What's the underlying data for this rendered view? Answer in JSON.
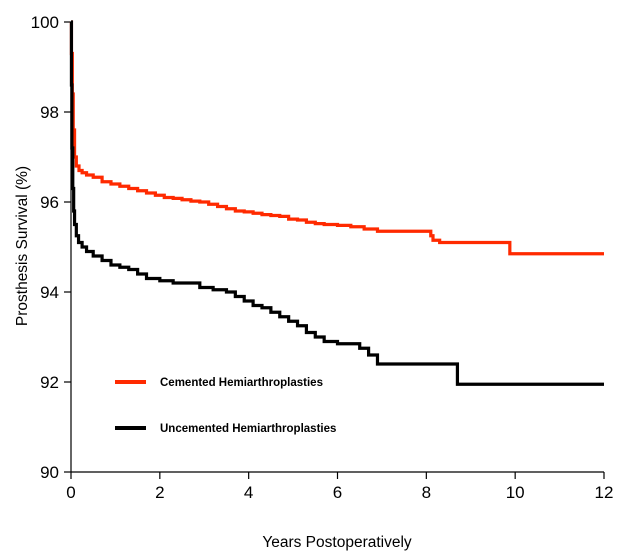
{
  "chart_data": {
    "type": "line",
    "title": "",
    "xlabel": "Years Postoperatively",
    "ylabel": "Prosthesis Survival (%)",
    "xlim": [
      0,
      12
    ],
    "ylim": [
      90,
      100
    ],
    "x_ticks": [
      "0",
      "2",
      "4",
      "6",
      "8",
      "10",
      "12"
    ],
    "y_ticks": [
      "90",
      "92",
      "94",
      "96",
      "98",
      "100"
    ],
    "grid": false,
    "legend_position": "bottom-left",
    "step": true,
    "series": [
      {
        "name": "Cemented Hemiarthroplasties",
        "color": "#ff2a00",
        "x": [
          0,
          0.01,
          0.03,
          0.05,
          0.08,
          0.12,
          0.18,
          0.25,
          0.35,
          0.5,
          0.7,
          0.9,
          1.1,
          1.3,
          1.5,
          1.7,
          1.9,
          2.1,
          2.3,
          2.5,
          2.7,
          2.9,
          3.1,
          3.3,
          3.5,
          3.7,
          3.9,
          4.1,
          4.3,
          4.5,
          4.7,
          4.9,
          5.1,
          5.3,
          5.5,
          5.7,
          6.0,
          6.3,
          6.6,
          6.9,
          7.2,
          7.5,
          7.8,
          8.1,
          8.15,
          8.3,
          9.0,
          9.6,
          9.88,
          10.5,
          11.0,
          12.0
        ],
        "y": [
          100,
          99.3,
          98.4,
          97.6,
          97.0,
          96.8,
          96.7,
          96.65,
          96.6,
          96.55,
          96.45,
          96.4,
          96.35,
          96.3,
          96.25,
          96.2,
          96.15,
          96.1,
          96.08,
          96.05,
          96.02,
          96.0,
          95.95,
          95.9,
          95.85,
          95.8,
          95.78,
          95.75,
          95.72,
          95.7,
          95.68,
          95.62,
          95.6,
          95.55,
          95.52,
          95.5,
          95.48,
          95.45,
          95.4,
          95.35,
          95.35,
          95.35,
          95.35,
          95.25,
          95.15,
          95.1,
          95.1,
          95.1,
          94.85,
          94.85,
          94.85,
          94.85
        ]
      },
      {
        "name": "Uncemented Hemiarthroplasties",
        "color": "#000000",
        "x": [
          0,
          0.01,
          0.02,
          0.04,
          0.06,
          0.08,
          0.12,
          0.17,
          0.25,
          0.35,
          0.5,
          0.7,
          0.9,
          1.1,
          1.3,
          1.5,
          1.7,
          2.0,
          2.3,
          2.6,
          2.9,
          3.2,
          3.5,
          3.7,
          3.9,
          4.1,
          4.3,
          4.5,
          4.7,
          4.9,
          5.1,
          5.3,
          5.5,
          5.7,
          6.0,
          6.3,
          6.5,
          6.7,
          6.9,
          7.2,
          7.6,
          8.0,
          8.4,
          8.7,
          9.2,
          10.0,
          11.0,
          12.0
        ],
        "y": [
          100,
          98.6,
          97.2,
          96.3,
          95.8,
          95.5,
          95.25,
          95.1,
          95.0,
          94.9,
          94.8,
          94.7,
          94.6,
          94.55,
          94.5,
          94.4,
          94.3,
          94.25,
          94.2,
          94.2,
          94.1,
          94.05,
          94.0,
          93.9,
          93.8,
          93.7,
          93.65,
          93.55,
          93.45,
          93.35,
          93.25,
          93.1,
          93.0,
          92.9,
          92.85,
          92.85,
          92.75,
          92.6,
          92.4,
          92.4,
          92.4,
          92.4,
          92.4,
          91.95,
          91.95,
          91.95,
          91.95,
          91.95
        ]
      }
    ]
  }
}
